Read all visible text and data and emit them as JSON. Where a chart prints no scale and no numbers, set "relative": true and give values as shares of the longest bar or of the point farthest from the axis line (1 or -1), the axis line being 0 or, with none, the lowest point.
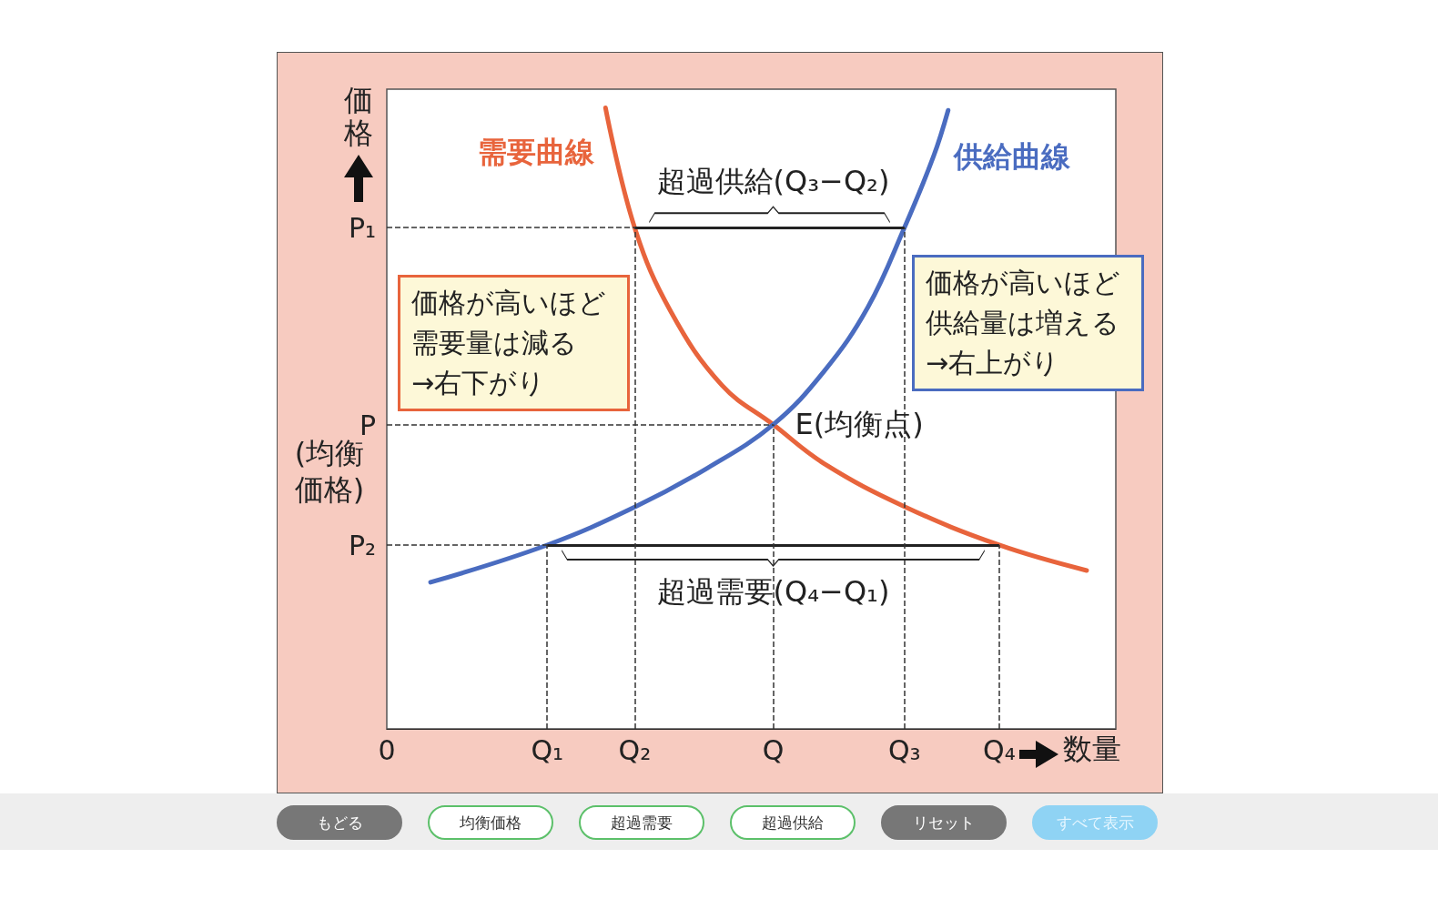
{
  "chart_data": {
    "type": "line",
    "xlabel": "数量",
    "ylabel": "価格",
    "relative": true,
    "categories": [
      "0",
      null,
      null,
      null,
      null,
      null,
      null,
      null,
      null,
      null,
      null,
      null,
      null,
      null,
      null,
      null,
      null,
      null,
      null,
      null,
      null,
      null,
      "Q₁",
      null,
      null,
      null,
      null,
      null,
      null,
      null,
      null,
      null,
      null,
      null,
      "Q₂",
      null,
      null,
      null,
      null,
      null,
      null,
      null,
      null,
      null,
      null,
      null,
      null,
      null,
      null,
      null,
      null,
      null,
      null,
      "Q",
      null,
      null,
      null,
      null,
      null,
      null,
      null,
      null,
      null,
      null,
      null,
      null,
      null,
      null,
      null,
      null,
      null,
      "Q₃",
      null,
      null,
      null,
      null,
      null,
      null,
      null,
      null,
      null,
      null,
      null,
      null,
      "Q₄",
      null,
      null,
      null,
      null,
      null,
      null,
      null,
      null,
      null,
      null,
      null,
      null,
      null,
      null,
      null,
      null
    ],
    "series": [
      {
        "name": "需要曲線",
        "color": "#e8643c",
        "values": [
          null,
          null,
          null,
          null,
          null,
          null,
          null,
          null,
          null,
          null,
          null,
          null,
          null,
          null,
          null,
          null,
          null,
          null,
          null,
          null,
          null,
          null,
          null,
          null,
          null,
          null,
          null,
          null,
          null,
          null,
          1,
          null,
          null,
          null,
          0.807,
          null,
          null,
          null,
          null,
          0.671,
          null,
          null,
          null,
          null,
          null,
          null,
          0.553,
          null,
          null,
          null,
          null,
          null,
          null,
          0.49,
          null,
          null,
          null,
          null,
          null,
          null,
          0.427,
          null,
          null,
          null,
          null,
          null,
          null,
          null,
          null,
          null,
          null,
          0.358,
          null,
          null,
          null,
          null,
          null,
          null,
          null,
          null,
          null,
          null,
          null,
          null,
          0.296,
          null,
          null,
          null,
          null,
          null,
          null,
          null,
          null,
          null,
          null,
          null,
          0.255,
          null,
          null,
          null,
          null
        ]
      },
      {
        "name": "供給曲線",
        "color": "#4a6cc0",
        "values": [
          null,
          null,
          null,
          null,
          null,
          null,
          0.236,
          null,
          null,
          null,
          null,
          null,
          null,
          null,
          null,
          null,
          null,
          null,
          null,
          null,
          null,
          null,
          0.296,
          null,
          null,
          null,
          null,
          null,
          null,
          null,
          null,
          null,
          null,
          null,
          0.357,
          null,
          null,
          null,
          null,
          null,
          null,
          null,
          null,
          null,
          0.42,
          null,
          null,
          null,
          null,
          null,
          null,
          null,
          null,
          0.49,
          null,
          null,
          null,
          null,
          null,
          null,
          0.576,
          null,
          null,
          null,
          null,
          null,
          0.679,
          null,
          null,
          null,
          null,
          0.807,
          null,
          null,
          null,
          0.922,
          null,
          0.996,
          null,
          null,
          null,
          null,
          null,
          null,
          null,
          null,
          null,
          null,
          null,
          null,
          null,
          null,
          null,
          null,
          null,
          null,
          null,
          null,
          null,
          null,
          null
        ]
      }
    ],
    "ref_lines": [
      {
        "axis": "y",
        "value": 0.807,
        "label": "P₁"
      },
      {
        "axis": "y",
        "value": 0.49,
        "label": "P"
      },
      {
        "axis": "y",
        "value": 0.296,
        "label": "P₂"
      },
      {
        "axis": "y",
        "value": 0.807,
        "color": "#222222",
        "line_style": "solid"
      },
      {
        "axis": "y",
        "value": 0.296,
        "color": "#222222",
        "line_style": "solid"
      },
      {
        "axis": "x",
        "value": "Q₁"
      },
      {
        "axis": "x",
        "value": "Q₂"
      },
      {
        "axis": "x",
        "value": "Q"
      },
      {
        "axis": "x",
        "value": "Q₃"
      },
      {
        "axis": "x",
        "value": "Q₄"
      }
    ],
    "line_style": "solid",
    "marker": "none",
    "legend": false,
    "grid": false,
    "annotations": [
      {
        "text": "超過供給(Q₃−Q₂)",
        "x": "Q",
        "y": 0.807
      },
      {
        "text": "超過需要(Q₄−Q₁)",
        "x": "Q",
        "y": 0.296
      },
      {
        "text": "E(均衡点)",
        "x": "Q",
        "y": 0.49
      },
      "価格が高いほど需要量は減る→右下がり",
      "価格が高いほど供給量は増える→右上がり",
      "(均衡価格)",
      "もどる",
      "均衡価格",
      "超過需要",
      "超過供給",
      "リセット",
      "すべて表示"
    ]
  }
}
